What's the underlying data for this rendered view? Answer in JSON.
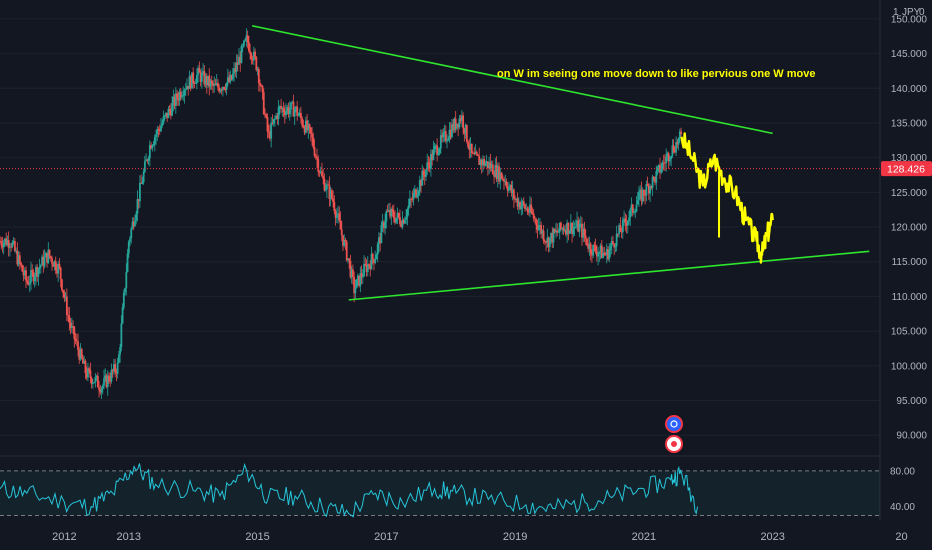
{
  "header": {
    "currency_label": "JPY",
    "currency_prefix": "1"
  },
  "annotation": {
    "text": "on W im seeing one move down to like pervious one W move"
  },
  "colors": {
    "background": "#131722",
    "up": "#26a69a",
    "down": "#ef5350",
    "trendline": "#2ee62e",
    "projection": "#ffff00",
    "annotation": "#ffff00",
    "rsi": "#26c6da",
    "price_tag": "#f23645",
    "grid": "#1e222d"
  },
  "price_axis": {
    "labels": [
      "150.000",
      "145.000",
      "140.000",
      "135.000",
      "130.000",
      "125.000",
      "120.000",
      "115.000",
      "110.000",
      "105.000",
      "100.000",
      "95.000",
      "90.000"
    ],
    "current_price": "128.426",
    "min": 87,
    "max": 152
  },
  "rsi_axis": {
    "labels": [
      "80.00",
      "40.00"
    ]
  },
  "time_axis": {
    "labels": [
      "2012",
      "2013",
      "2015",
      "2017",
      "2019",
      "2021",
      "2023",
      "20"
    ]
  },
  "chart_data": {
    "type": "candlestick",
    "title": "",
    "ylim": [
      87,
      152
    ],
    "current_price": 128.426,
    "price_path": [
      [
        "2011-03",
        118
      ],
      [
        "2011-06",
        112
      ],
      [
        "2011-10",
        116
      ],
      [
        "2011-12",
        114
      ],
      [
        "2012-02",
        106
      ],
      [
        "2012-05",
        99
      ],
      [
        "2012-08",
        97
      ],
      [
        "2012-11",
        100
      ],
      [
        "2013-01",
        118
      ],
      [
        "2013-03",
        125
      ],
      [
        "2013-05",
        132
      ],
      [
        "2013-08",
        136
      ],
      [
        "2013-11",
        140
      ],
      [
        "2014-02",
        142
      ],
      [
        "2014-05",
        140
      ],
      [
        "2014-08",
        141
      ],
      [
        "2014-11",
        147
      ],
      [
        "2015-01",
        143
      ],
      [
        "2015-03",
        133
      ],
      [
        "2015-05",
        137
      ],
      [
        "2015-08",
        137
      ],
      [
        "2015-11",
        133
      ],
      [
        "2016-01",
        127
      ],
      [
        "2016-03",
        124
      ],
      [
        "2016-06",
        115
      ],
      [
        "2016-07",
        111
      ],
      [
        "2016-09",
        114
      ],
      [
        "2016-11",
        116
      ],
      [
        "2017-01",
        122
      ],
      [
        "2017-04",
        121
      ],
      [
        "2017-07",
        126
      ],
      [
        "2017-10",
        131
      ],
      [
        "2018-01",
        134
      ],
      [
        "2018-03",
        136
      ],
      [
        "2018-05",
        130
      ],
      [
        "2018-08",
        129
      ],
      [
        "2018-11",
        127
      ],
      [
        "2019-01",
        124
      ],
      [
        "2019-04",
        122
      ],
      [
        "2019-07",
        118
      ],
      [
        "2019-10",
        120
      ],
      [
        "2020-01",
        120
      ],
      [
        "2020-03",
        117
      ],
      [
        "2020-06",
        116
      ],
      [
        "2020-09",
        120
      ],
      [
        "2020-12",
        124
      ],
      [
        "2021-03",
        127
      ],
      [
        "2021-06",
        131
      ],
      [
        "2021-08",
        133
      ]
    ],
    "projection_path": [
      [
        "2021-08",
        133
      ],
      [
        "2021-10",
        130
      ],
      [
        "2021-12",
        126
      ],
      [
        "2022-02",
        130
      ],
      [
        "2022-04",
        127
      ],
      [
        "2022-06",
        125
      ],
      [
        "2022-08",
        121
      ],
      [
        "2022-10",
        118
      ],
      [
        "2022-11",
        116
      ],
      [
        "2022-12",
        119
      ],
      [
        "2023-01",
        121
      ]
    ],
    "trendlines": [
      {
        "name": "",
        "from": [
          "2014-12",
          149
        ],
        "to": [
          "2023-01",
          133.5
        ]
      },
      {
        "name": "",
        "from": [
          "2016-06",
          109.5
        ],
        "to": [
          "2024-07",
          116.5
        ]
      }
    ],
    "rsi": {
      "overbought": 80,
      "oversold": 30,
      "ylim": [
        25,
        90
      ],
      "path": [
        [
          "2011-01",
          60
        ],
        [
          "2011-06",
          55
        ],
        [
          "2012-01",
          45
        ],
        [
          "2012-06",
          40
        ],
        [
          "2012-10",
          55
        ],
        [
          "2013-02",
          85
        ],
        [
          "2013-06",
          65
        ],
        [
          "2014-01",
          58
        ],
        [
          "2014-06",
          52
        ],
        [
          "2014-11",
          80
        ],
        [
          "2015-03",
          50
        ],
        [
          "2015-08",
          52
        ],
        [
          "2016-01",
          40
        ],
        [
          "2016-06",
          32
        ],
        [
          "2016-11",
          55
        ],
        [
          "2017-04",
          45
        ],
        [
          "2017-10",
          60
        ],
        [
          "2018-02",
          55
        ],
        [
          "2018-08",
          48
        ],
        [
          "2019-03",
          42
        ],
        [
          "2019-08",
          38
        ],
        [
          "2020-02",
          45
        ],
        [
          "2020-07",
          50
        ],
        [
          "2021-01",
          60
        ],
        [
          "2021-06",
          70
        ],
        [
          "2021-08",
          78
        ],
        [
          "2021-11",
          40
        ]
      ]
    },
    "x_range": [
      "2011-01",
      "2024-09"
    ]
  }
}
